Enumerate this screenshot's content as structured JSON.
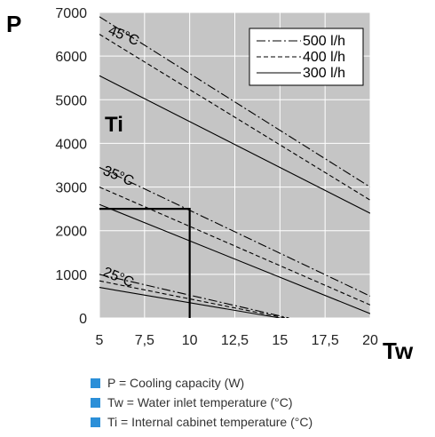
{
  "chart_data": {
    "type": "line",
    "title": "",
    "xlabel": "Tw",
    "ylabel": "P",
    "xlim": [
      5,
      20
    ],
    "ylim": [
      0,
      7000
    ],
    "x_ticks": [
      "5",
      "7,5",
      "10",
      "12,5",
      "15",
      "17,5",
      "20"
    ],
    "y_ticks": [
      "0",
      "1000",
      "2000",
      "3000",
      "4000",
      "5000",
      "6000",
      "7000"
    ],
    "grid": true,
    "legend_position": "top-right",
    "group_title": "Ti",
    "groups": [
      "45°C",
      "35°C",
      "25°C"
    ],
    "legend": [
      {
        "label": "500 l/h",
        "style": "dashdot"
      },
      {
        "label": "400 l/h",
        "style": "dashed"
      },
      {
        "label": "300 l/h",
        "style": "solid"
      }
    ],
    "series": [
      {
        "name": "500 l/h",
        "group": "45°C",
        "style": "dashdot",
        "x": [
          5,
          20
        ],
        "y": [
          6900,
          3000
        ]
      },
      {
        "name": "400 l/h",
        "group": "45°C",
        "style": "dashed",
        "x": [
          5,
          20
        ],
        "y": [
          6500,
          2700
        ]
      },
      {
        "name": "300 l/h",
        "group": "45°C",
        "style": "solid",
        "x": [
          5,
          20
        ],
        "y": [
          5550,
          2400
        ]
      },
      {
        "name": "500 l/h",
        "group": "35°C",
        "style": "dashdot",
        "x": [
          5,
          20
        ],
        "y": [
          3450,
          500
        ]
      },
      {
        "name": "400 l/h",
        "group": "35°C",
        "style": "dashed",
        "x": [
          5,
          20
        ],
        "y": [
          3000,
          300
        ]
      },
      {
        "name": "300 l/h",
        "group": "35°C",
        "style": "solid",
        "x": [
          5,
          20
        ],
        "y": [
          2600,
          100
        ]
      },
      {
        "name": "500 l/h",
        "group": "25°C",
        "style": "dashdot",
        "x": [
          5,
          15.5
        ],
        "y": [
          1000,
          0
        ]
      },
      {
        "name": "400 l/h",
        "group": "25°C",
        "style": "dashed",
        "x": [
          5,
          15.3
        ],
        "y": [
          850,
          0
        ]
      },
      {
        "name": "300 l/h",
        "group": "25°C",
        "style": "solid",
        "x": [
          5,
          15
        ],
        "y": [
          700,
          0
        ]
      }
    ],
    "reference": {
      "x": 10,
      "y": 2500
    }
  },
  "notes": [
    "P = Cooling capacity (W)",
    "Tw = Water inlet temperature (°C)",
    "Ti = Internal cabinet temperature (°C)"
  ],
  "colors": {
    "plot_background": "#c5c5c5",
    "grid": "#ffffff",
    "bullet": "#2b8fd8",
    "line": "#000000"
  }
}
